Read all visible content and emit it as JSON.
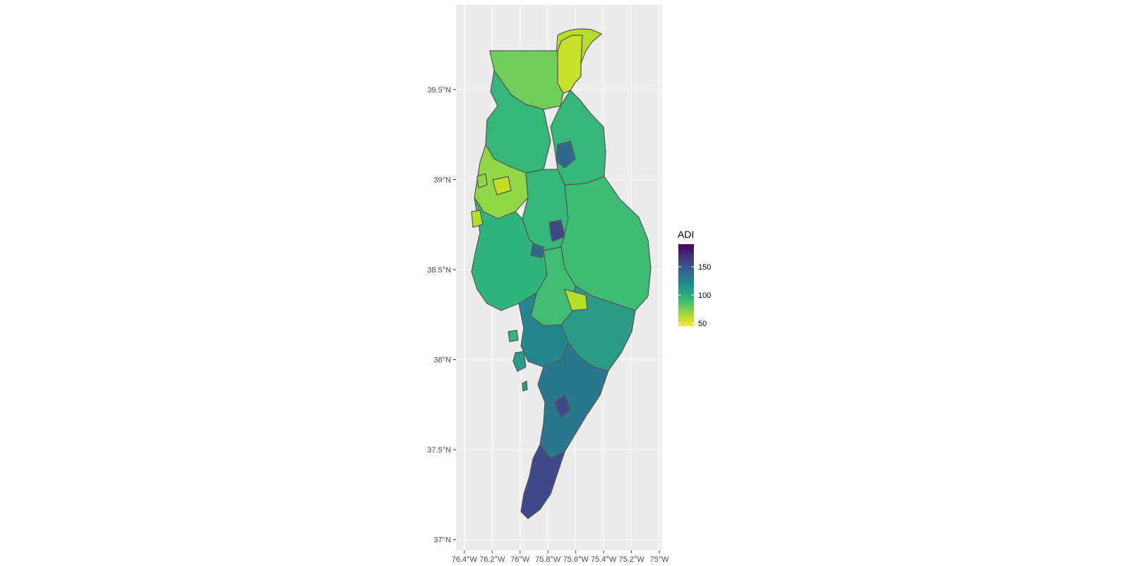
{
  "map": {
    "type": "choropleth",
    "region": "Delmarva Peninsula",
    "panel_background": "#ebebeb",
    "grid_color": "#ffffff",
    "border_color": "#555555",
    "x_axis": {
      "ticks": [
        "76.4°W",
        "76.2°W",
        "76°W",
        "75.8°W",
        "75.6°W",
        "75.4°W",
        "75.2°W",
        "75°W"
      ],
      "values": [
        -76.4,
        -76.2,
        -76.0,
        -75.8,
        -75.6,
        -75.4,
        -75.2,
        -75.0
      ],
      "range": [
        -76.46,
        -74.98
      ]
    },
    "y_axis": {
      "ticks": [
        "37°N",
        "37.5°N",
        "38°N",
        "38.5°N",
        "39°N",
        "39.5°N"
      ],
      "values": [
        37.0,
        37.5,
        38.0,
        38.5,
        39.0,
        39.5
      ],
      "range": [
        36.94,
        39.97
      ]
    }
  },
  "legend": {
    "title": "ADI",
    "labels": [
      "150",
      "100",
      "50"
    ],
    "values": [
      150,
      100,
      50
    ],
    "range": [
      45,
      190
    ],
    "colors": [
      "#fde725",
      "#b5de2b",
      "#6ece58",
      "#35b779",
      "#1f9e89",
      "#26828e",
      "#31688e",
      "#3e4989",
      "#482878",
      "#440154"
    ]
  }
}
